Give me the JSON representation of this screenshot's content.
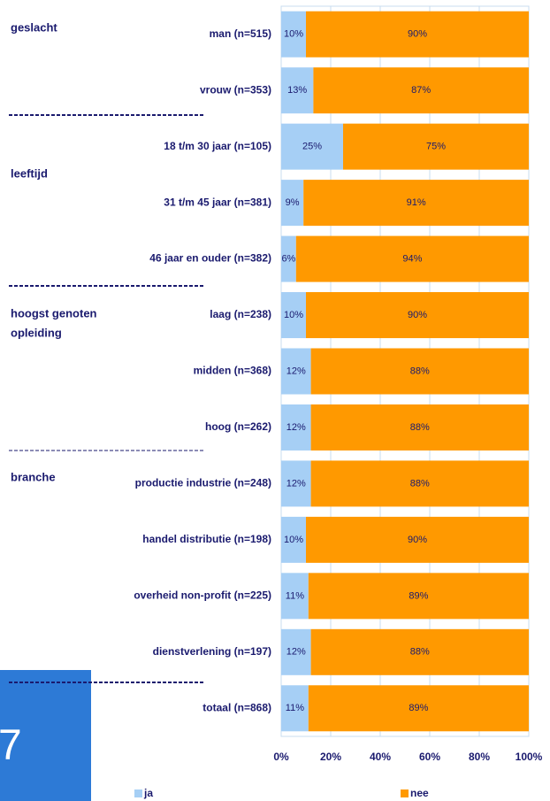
{
  "chart_data": {
    "type": "stacked_bar_horizontal",
    "categories": [
      "man (n=515)",
      "vrouw (n=353)",
      "18 t/m 30 jaar (n=105)",
      "31 t/m 45 jaar (n=381)",
      "46 jaar en ouder (n=382)",
      "laag (n=238)",
      "midden (n=368)",
      "hoog (n=262)",
      "productie industrie (n=248)",
      "handel distributie (n=198)",
      "overheid non-profit (n=225)",
      "dienstverlening (n=197)",
      "totaal (n=868)"
    ],
    "series": [
      {
        "name": "ja",
        "color": "#a6cff5",
        "values": [
          10,
          13,
          25,
          9,
          6,
          10,
          12,
          12,
          12,
          10,
          11,
          12,
          11
        ],
        "value_labels": [
          "10%",
          "13%",
          "25%",
          "9%",
          "6%",
          "10%",
          "12%",
          "12%",
          "12%",
          "10%",
          "11%",
          "12%",
          "11%"
        ]
      },
      {
        "name": "nee",
        "color": "#ff9900",
        "values": [
          90,
          87,
          75,
          91,
          94,
          90,
          88,
          88,
          88,
          90,
          89,
          88,
          89
        ],
        "value_labels": [
          "90%",
          "87%",
          "75%",
          "91%",
          "94%",
          "90%",
          "88%",
          "88%",
          "88%",
          "90%",
          "89%",
          "88%",
          "89%"
        ]
      }
    ],
    "xlim": [
      0,
      100
    ],
    "xticks": [
      {
        "value": 0,
        "label": "0%"
      },
      {
        "value": 20,
        "label": "20%"
      },
      {
        "value": 40,
        "label": "40%"
      },
      {
        "value": 60,
        "label": "60%"
      },
      {
        "value": 80,
        "label": "80%"
      },
      {
        "value": 100,
        "label": "100%"
      }
    ],
    "grid": true,
    "legend": "bottom",
    "group_labels": [
      [
        "geslacht"
      ],
      [
        "leeftijd"
      ],
      [
        "hoogst genoten",
        "opleiding"
      ],
      [
        "branche"
      ]
    ],
    "page_number": "7"
  }
}
